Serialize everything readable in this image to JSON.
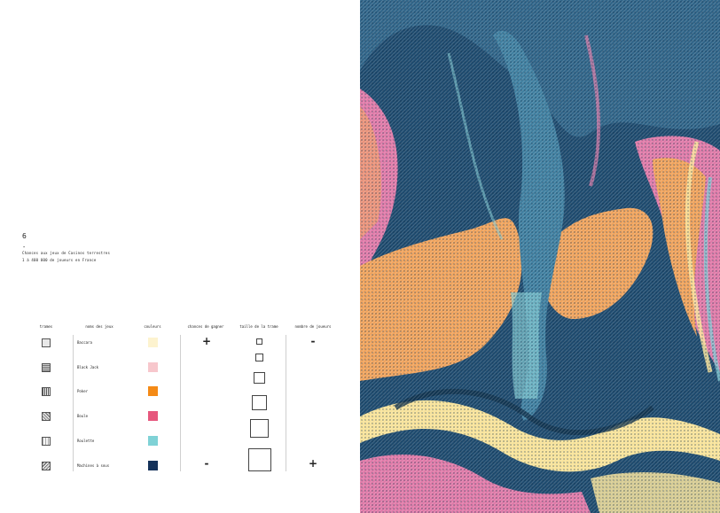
{
  "page": {
    "number": "6",
    "dash": "-",
    "desc_line1": "Chances aux jeux de Casinos terrestres",
    "desc_line2": "1 à 400 000 de joueurs en France"
  },
  "legend": {
    "headers": [
      "trames",
      "noms des jeux",
      "couleurs",
      "chances de gagner",
      "taille de la trame",
      "nombre de joueurs"
    ],
    "games": [
      {
        "name": "Baccara",
        "color": "#fdf3cf"
      },
      {
        "name": "Black Jack",
        "color": "#f7c7cc"
      },
      {
        "name": "Poker",
        "color": "#f48a16"
      },
      {
        "name": "Boule",
        "color": "#e6577d"
      },
      {
        "name": "Roulette",
        "color": "#7fd2d6"
      },
      {
        "name": "Machines à sous",
        "color": "#15325a"
      }
    ],
    "chances_top": "+",
    "chances_bottom": "-",
    "players_top": "-",
    "players_bottom": "+"
  },
  "artwork": {
    "palette": [
      "#1d4a6e",
      "#3f7fa0",
      "#e07aa8",
      "#f0a35c",
      "#f8e39a",
      "#7fc6cf"
    ]
  }
}
